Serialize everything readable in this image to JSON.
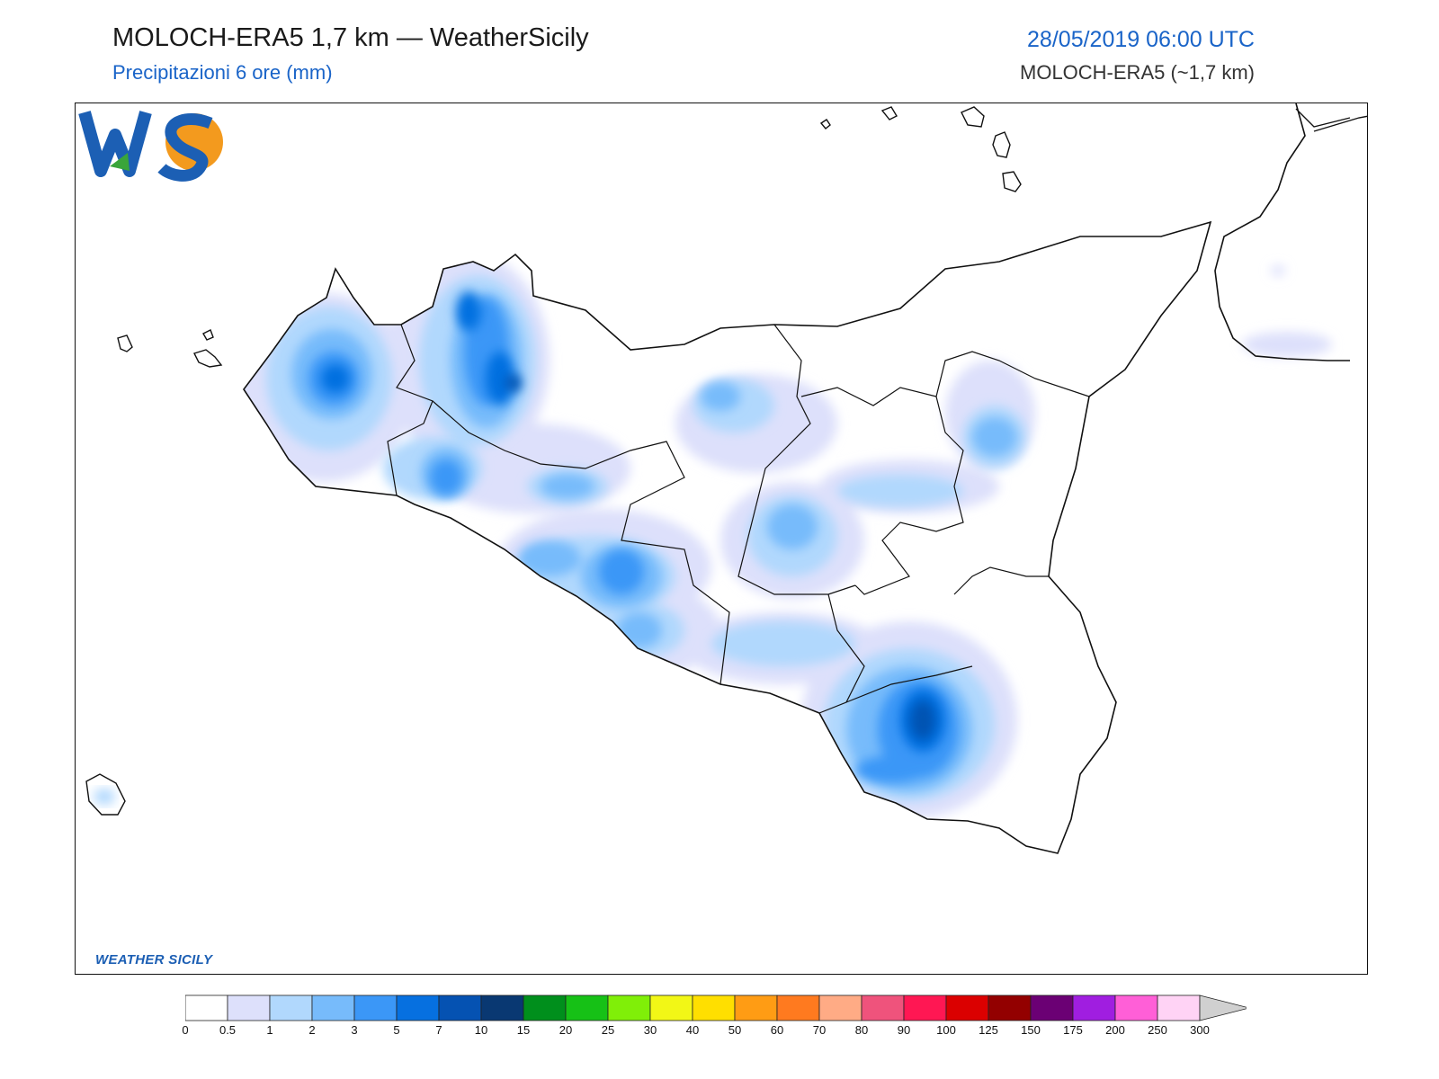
{
  "header": {
    "title": "MOLOCH-ERA5 1,7 km — WeatherSicily",
    "subtitle": "Precipitazioni 6 ore (mm)",
    "datetime": "28/05/2019 06:00 UTC",
    "model_resolution": "MOLOCH-ERA5 (~1,7 km)"
  },
  "logo": {
    "letters": "WS",
    "text": "WEATHER SICILY",
    "colors": {
      "blue": "#1c5fb4",
      "orange": "#f39a1e",
      "green": "#3aa53a"
    }
  },
  "legend": {
    "levels": [
      "0",
      "0.5",
      "1",
      "2",
      "3",
      "5",
      "7",
      "10",
      "15",
      "20",
      "25",
      "30",
      "40",
      "50",
      "60",
      "70",
      "80",
      "90",
      "100",
      "125",
      "150",
      "175",
      "200",
      "250",
      "300"
    ],
    "colors": [
      "#ffffff",
      "#dde0fb",
      "#b1d8fd",
      "#77bbfb",
      "#3b97f7",
      "#0670e0",
      "#0552b2",
      "#093872",
      "#008f1c",
      "#16c116",
      "#80ef08",
      "#f2f716",
      "#ffdf00",
      "#ff9c14",
      "#ff7a1f",
      "#ffab85",
      "#ef537c",
      "#ff1753",
      "#db0000",
      "#930000",
      "#6b0074",
      "#a01ee0",
      "#ff5fd7",
      "#ffd3f5",
      "#d0d0d0"
    ]
  },
  "map": {
    "region": "Sicily",
    "features": [
      "coastline",
      "province-borders",
      "Aeolian Islands",
      "Egadi Islands",
      "Ustica",
      "Pantelleria",
      "Calabria"
    ],
    "precipitation_scale_colors": [
      "#dde0fb",
      "#b1d8fd",
      "#77bbfb",
      "#3b97f7",
      "#0670e0",
      "#0552b2",
      "#093872"
    ]
  }
}
